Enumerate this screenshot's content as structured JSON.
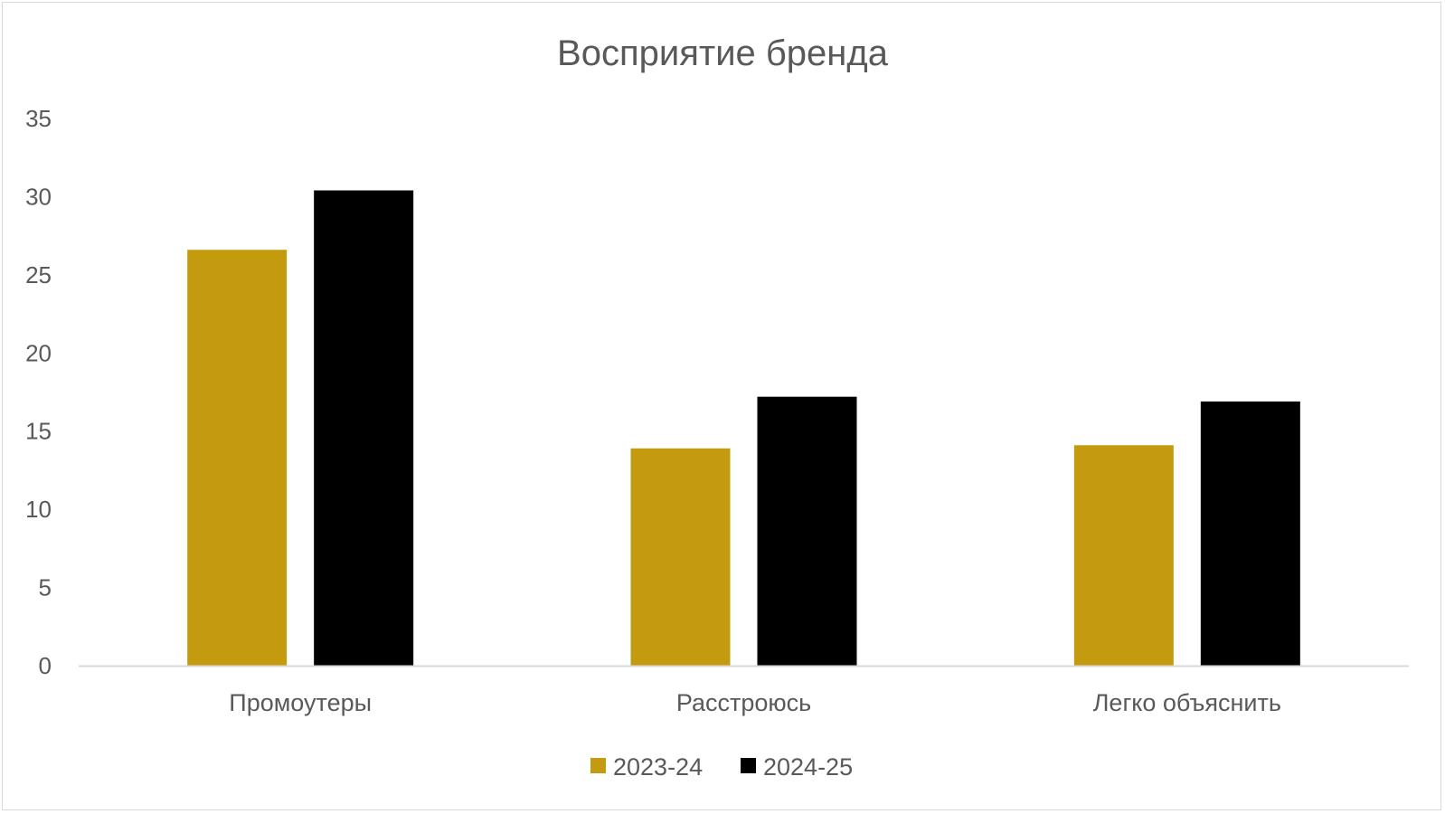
{
  "chart_data": {
    "type": "bar",
    "title": "Восприятие бренда",
    "xlabel": "",
    "ylabel": "",
    "categories": [
      "Промоутеры",
      "Расстроюсь",
      "Легко объяснить"
    ],
    "series": [
      {
        "name": "2023-24",
        "color": "#c49b0e",
        "values": [
          26.6,
          13.9,
          14.1
        ]
      },
      {
        "name": "2024-25",
        "color": "#000000",
        "values": [
          30.4,
          17.2,
          16.9
        ]
      }
    ],
    "ylim": [
      0,
      35
    ],
    "yticks": [
      0,
      5,
      10,
      15,
      20,
      25,
      30,
      35
    ],
    "ytick_labels": [
      "0",
      "5",
      "10",
      "15",
      "20",
      "25",
      "30",
      "35"
    ],
    "grid": false,
    "legend_position": "bottom",
    "axis_color": "#d9d9d9"
  }
}
